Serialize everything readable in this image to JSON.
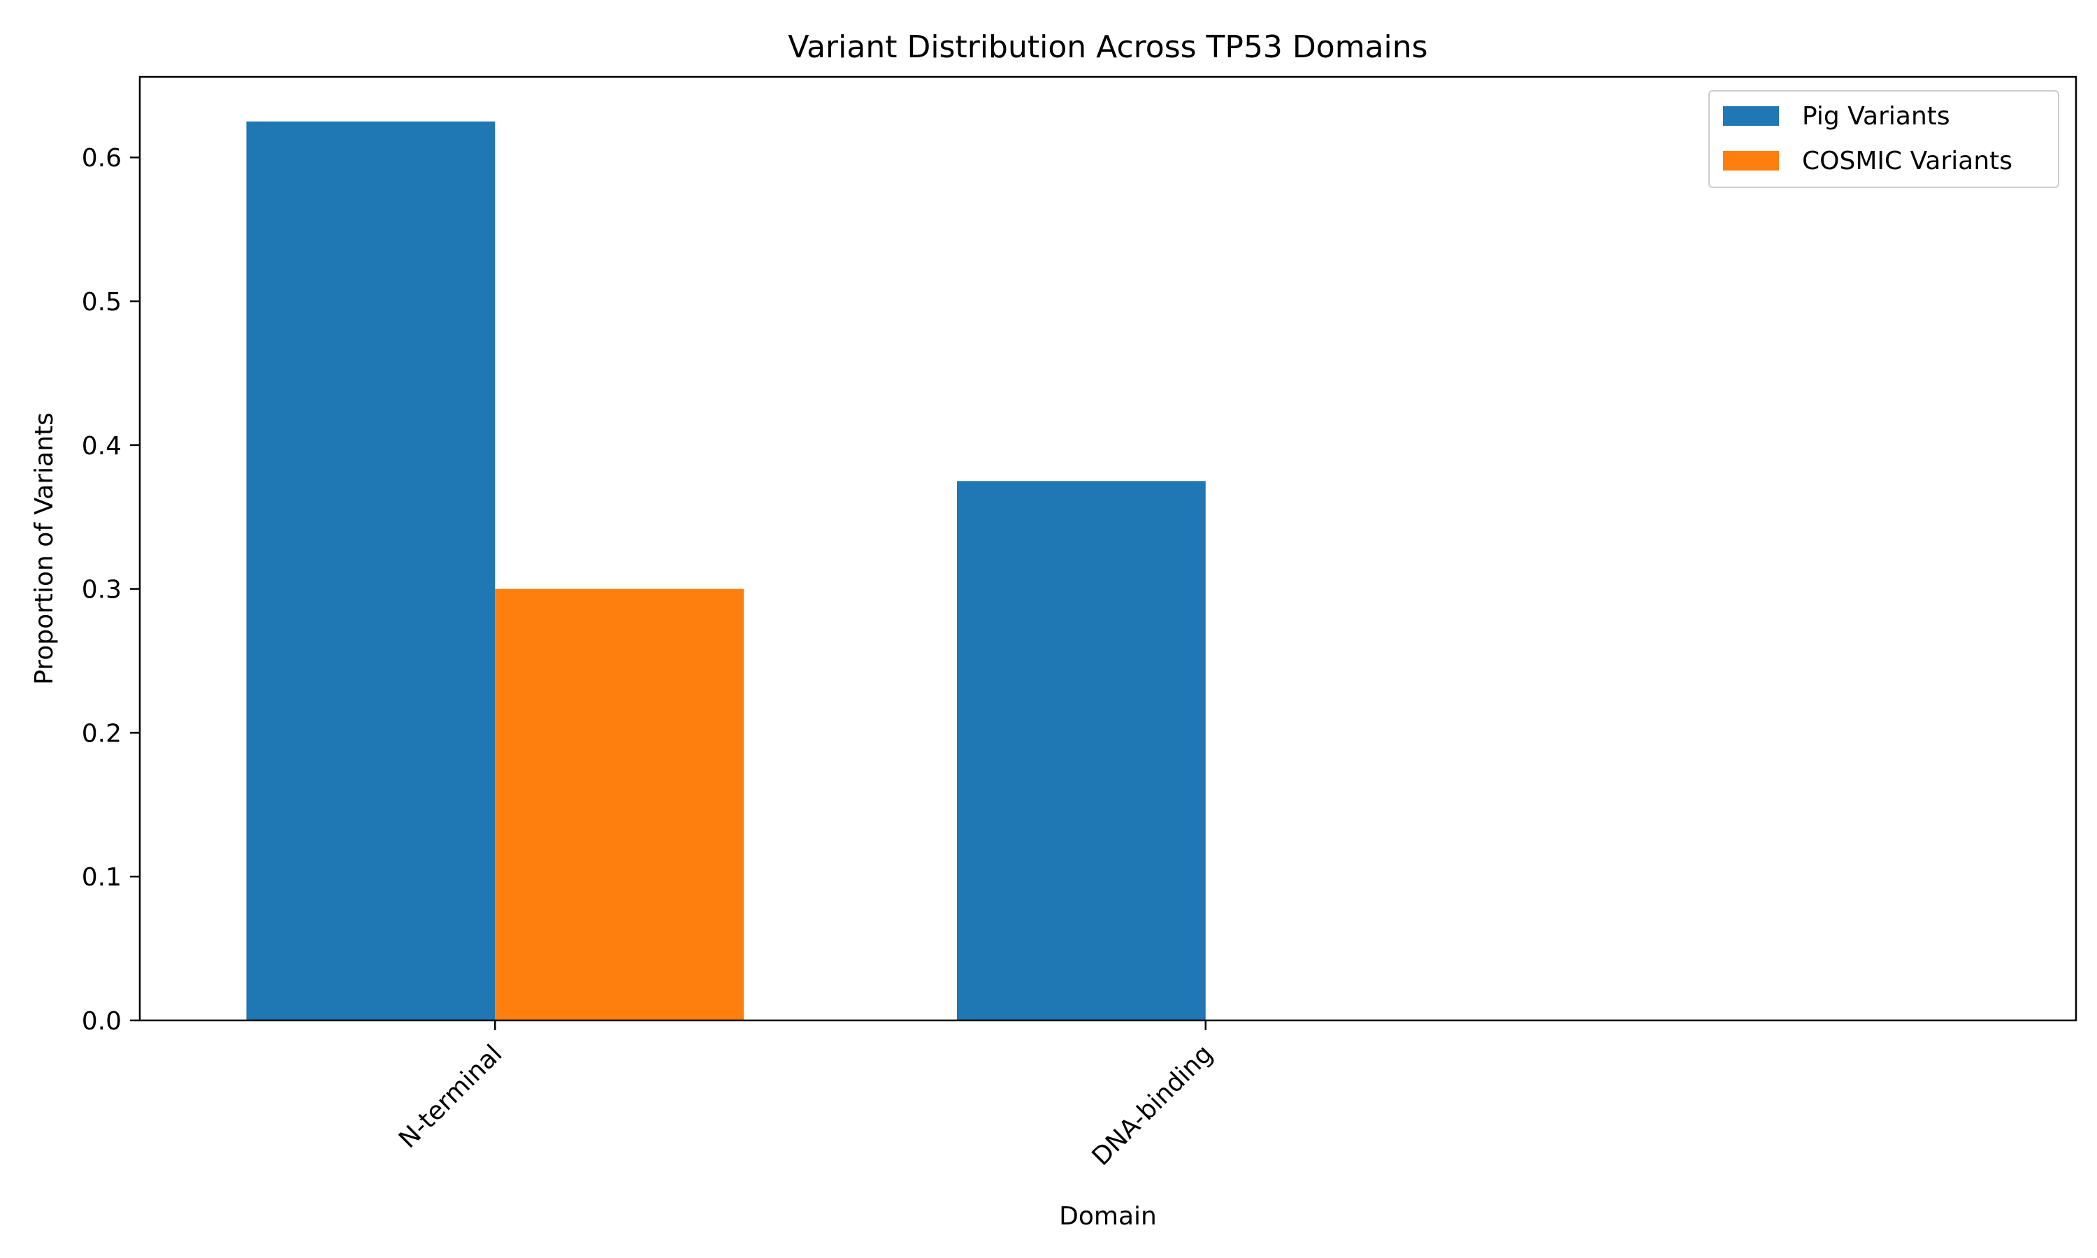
{
  "chart_data": {
    "type": "bar",
    "title": "Variant Distribution Across TP53 Domains",
    "xlabel": "Domain",
    "ylabel": "Proportion of Variants",
    "categories": [
      "N-terminal",
      "DNA-binding"
    ],
    "series": [
      {
        "name": "Pig Variants",
        "color": "#1f77b4",
        "values": [
          0.625,
          0.375
        ]
      },
      {
        "name": "COSMIC Variants",
        "color": "#ff7f0e",
        "values": [
          0.3,
          0.0
        ]
      }
    ],
    "ylim": [
      0,
      0.656
    ],
    "yticks": [
      "0.0",
      "0.1",
      "0.2",
      "0.3",
      "0.4",
      "0.5",
      "0.6"
    ],
    "grid": false,
    "legend_position": "top-right",
    "xtick_rotation_deg": 45
  }
}
